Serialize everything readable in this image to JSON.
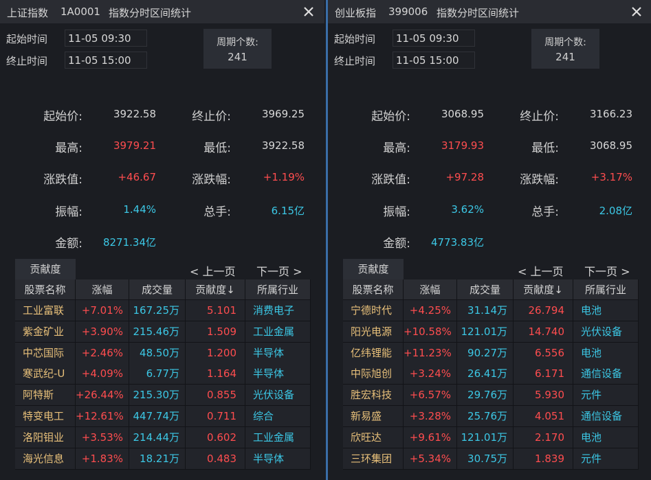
{
  "panels": [
    {
      "title": "上证指数",
      "code": "1A0001",
      "subtitle": "指数分时区间统计",
      "start_label": "起始时间",
      "start_time": "11-05 09:30",
      "end_label": "终止时间",
      "end_time": "11-05 15:00",
      "period_label": "周期个数:",
      "period": "241",
      "stats": [
        {
          "label": "起始价:",
          "value": "3922.58",
          "color": "#d8d8d8"
        },
        {
          "label": "终止价:",
          "value": "3969.25",
          "color": "#d8d8d8"
        },
        {
          "label": "最高:",
          "value": "3979.21",
          "color": "#ff4d4f"
        },
        {
          "label": "最低:",
          "value": "3922.58",
          "color": "#d8d8d8"
        },
        {
          "label": "涨跌值:",
          "value": "+46.67",
          "color": "#ff4d4f"
        },
        {
          "label": "涨跌幅:",
          "value": "+1.19%",
          "color": "#ff4d4f"
        },
        {
          "label": "振幅:",
          "value": "1.44%",
          "color": "#3cc8e6"
        },
        {
          "label": "总手:",
          "value": "6.15亿",
          "color": "#3cc8e6"
        },
        {
          "label": "金额:",
          "value": "8271.34亿",
          "color": "#3cc8e6"
        }
      ],
      "table": {
        "tab": "贡献度",
        "prev": "< 上一页",
        "next": "下一页 >",
        "headers": [
          "股票名称",
          "涨幅",
          "成交量",
          "贡献度↓",
          "所属行业"
        ],
        "rows": [
          [
            "工业富联",
            "+7.01%",
            "167.25万",
            "5.101",
            "消费电子"
          ],
          [
            "紫金矿业",
            "+3.90%",
            "215.46万",
            "1.509",
            "工业金属"
          ],
          [
            "中芯国际",
            "+2.46%",
            "48.50万",
            "1.200",
            "半导体"
          ],
          [
            "寒武纪-U",
            "+4.09%",
            "6.77万",
            "1.164",
            "半导体"
          ],
          [
            "阿特斯",
            "+26.44%",
            "215.30万",
            "0.855",
            "光伏设备"
          ],
          [
            "特变电工",
            "+12.61%",
            "447.74万",
            "0.711",
            "综合"
          ],
          [
            "洛阳钼业",
            "+3.53%",
            "214.44万",
            "0.602",
            "工业金属"
          ],
          [
            "海光信息",
            "+1.83%",
            "18.21万",
            "0.483",
            "半导体"
          ]
        ]
      }
    },
    {
      "title": "创业板指",
      "code": "399006",
      "subtitle": "指数分时区间统计",
      "start_label": "起始时间",
      "start_time": "11-05 09:30",
      "end_label": "终止时间",
      "end_time": "11-05 15:00",
      "period_label": "周期个数:",
      "period": "241",
      "stats": [
        {
          "label": "起始价:",
          "value": "3068.95",
          "color": "#d8d8d8"
        },
        {
          "label": "终止价:",
          "value": "3166.23",
          "color": "#d8d8d8"
        },
        {
          "label": "最高:",
          "value": "3179.93",
          "color": "#ff4d4f"
        },
        {
          "label": "最低:",
          "value": "3068.95",
          "color": "#d8d8d8"
        },
        {
          "label": "涨跌值:",
          "value": "+97.28",
          "color": "#ff4d4f"
        },
        {
          "label": "涨跌幅:",
          "value": "+3.17%",
          "color": "#ff4d4f"
        },
        {
          "label": "振幅:",
          "value": "3.62%",
          "color": "#3cc8e6"
        },
        {
          "label": "总手:",
          "value": "2.08亿",
          "color": "#3cc8e6"
        },
        {
          "label": "金额:",
          "value": "4773.83亿",
          "color": "#3cc8e6"
        }
      ],
      "table": {
        "tab": "贡献度",
        "prev": "< 上一页",
        "next": "下一页 >",
        "headers": [
          "股票名称",
          "涨幅",
          "成交量",
          "贡献度↓",
          "所属行业"
        ],
        "rows": [
          [
            "宁德时代",
            "+4.25%",
            "31.14万",
            "26.794",
            "电池"
          ],
          [
            "阳光电源",
            "+10.58%",
            "121.01万",
            "14.740",
            "光伏设备"
          ],
          [
            "亿纬锂能",
            "+11.23%",
            "90.27万",
            "6.556",
            "电池"
          ],
          [
            "中际旭创",
            "+3.24%",
            "26.41万",
            "6.171",
            "通信设备"
          ],
          [
            "胜宏科技",
            "+6.57%",
            "29.76万",
            "5.930",
            "元件"
          ],
          [
            "新易盛",
            "+3.28%",
            "25.76万",
            "4.051",
            "通信设备"
          ],
          [
            "欣旺达",
            "+9.61%",
            "121.01万",
            "2.170",
            "电池"
          ],
          [
            "三环集团",
            "+5.34%",
            "30.75万",
            "1.839",
            "元件"
          ]
        ]
      }
    }
  ]
}
